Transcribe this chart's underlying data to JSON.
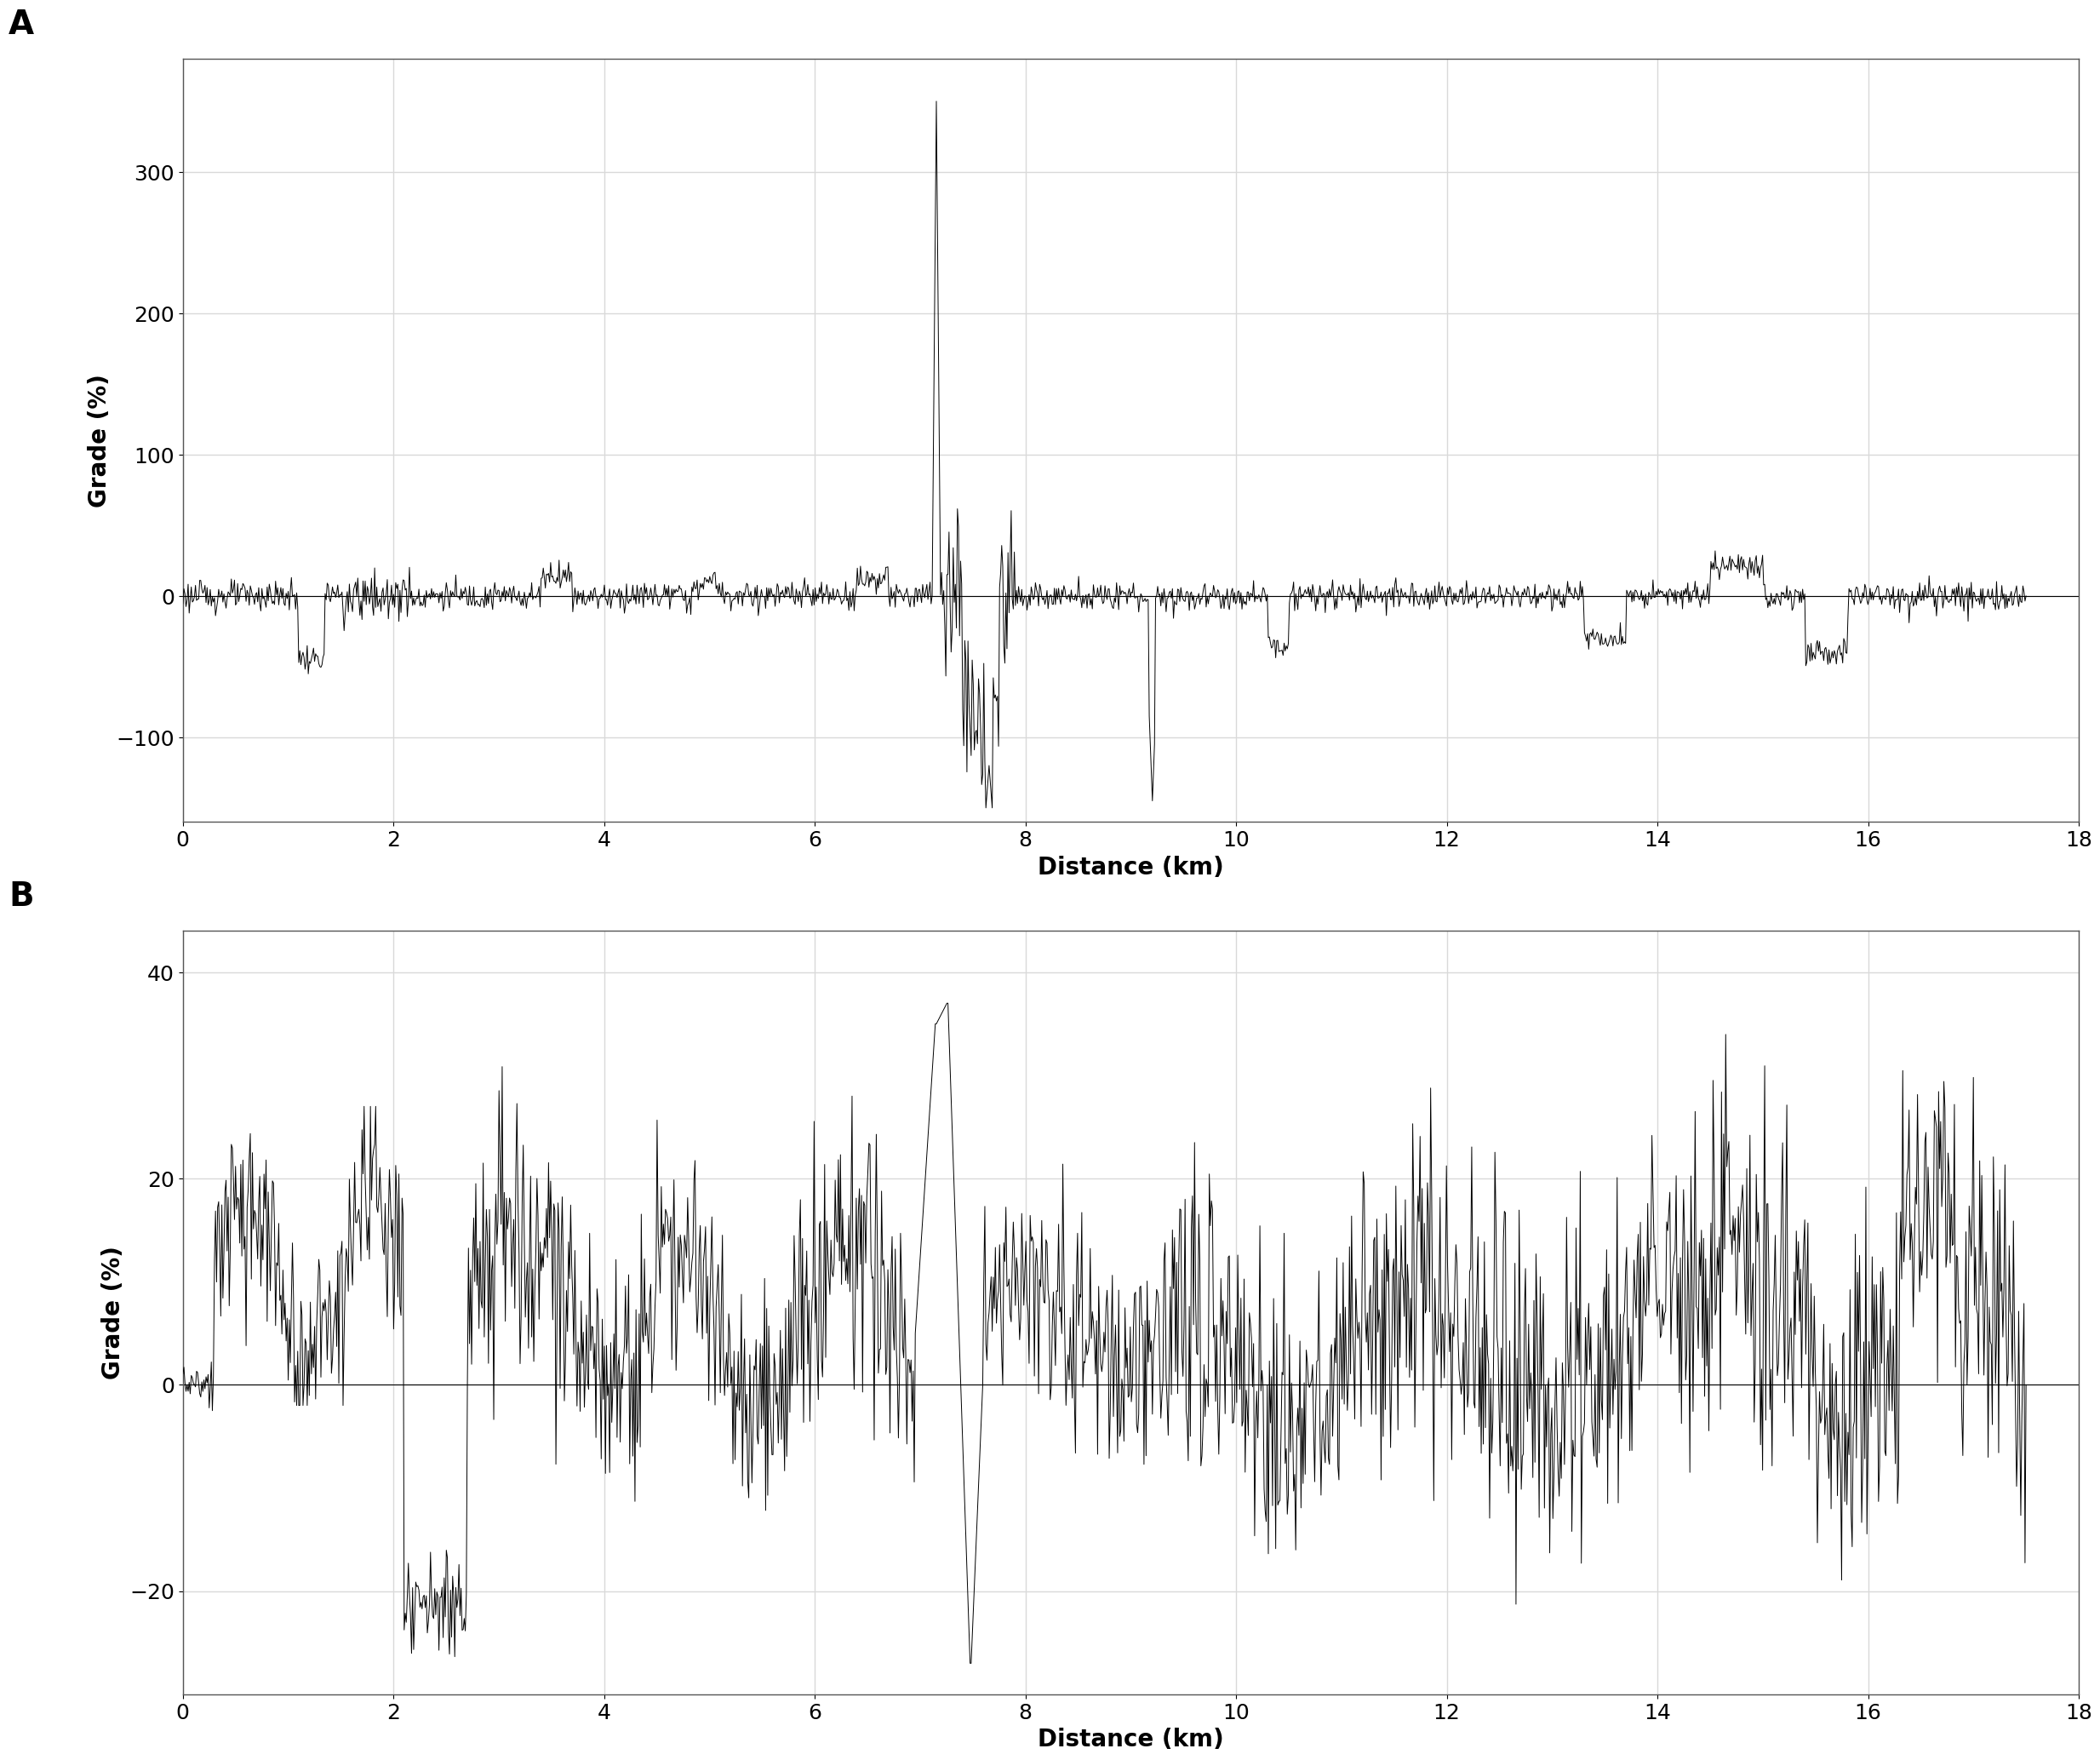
{
  "panel_A": {
    "label": "A",
    "ylabel": "Grade (%)",
    "xlabel": "Distance (km)",
    "xlim": [
      0,
      18
    ],
    "ylim": [
      -160,
      380
    ],
    "yticks": [
      -100,
      0,
      100,
      200,
      300
    ],
    "xticks": [
      0,
      2,
      4,
      6,
      8,
      10,
      12,
      14,
      16,
      18
    ],
    "line_color": "#000000",
    "line_width": 0.7,
    "bg_color": "#ffffff",
    "grid_color": "#d9d9d9",
    "spine_color": "#888888"
  },
  "panel_B": {
    "label": "B",
    "ylabel": "Grade (%)",
    "xlabel": "Distance (km)",
    "xlim": [
      0,
      18
    ],
    "ylim": [
      -30,
      44
    ],
    "yticks": [
      -20,
      0,
      20,
      40
    ],
    "xticks": [
      0,
      2,
      4,
      6,
      8,
      10,
      12,
      14,
      16,
      18
    ],
    "line_color": "#000000",
    "line_width": 0.7,
    "bg_color": "#ffffff",
    "grid_color": "#d9d9d9",
    "spine_color": "#888888"
  },
  "fig_bg": "#ffffff",
  "axis_fontsize": 20,
  "tick_fontsize": 18,
  "panel_label_fontsize": 28
}
